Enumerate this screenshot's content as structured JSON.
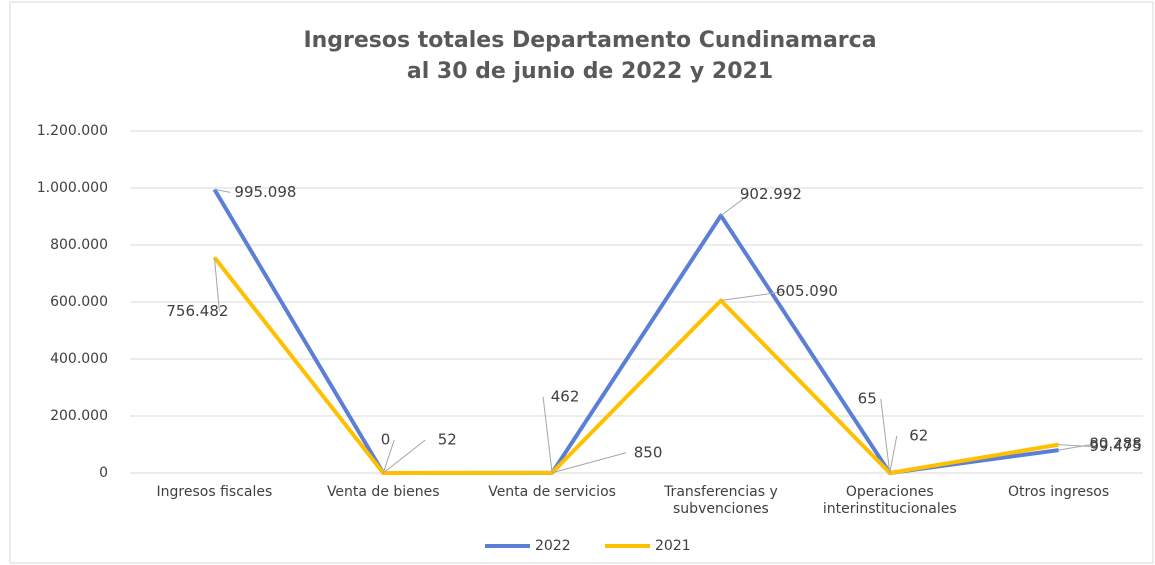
{
  "chart_data": {
    "type": "line",
    "title": [
      "Ingresos totales Departamento Cundinamarca",
      "al 30 de junio de 2022 y 2021"
    ],
    "categories": [
      "Ingresos fiscales",
      "Venta de bienes",
      "Venta de servicios",
      "Transferencias y subvenciones",
      "Operaciones interinstitucionales",
      "Otros ingresos"
    ],
    "series": [
      {
        "name": "2022",
        "color": "#5b7fd6",
        "values": [
          995098,
          0,
          462,
          902992,
          65,
          80288
        ],
        "value_labels": [
          "995.098",
          "0",
          "462",
          "902.992",
          "65",
          "80.288"
        ]
      },
      {
        "name": "2021",
        "color": "#ffc000",
        "values": [
          756482,
          52,
          850,
          605090,
          62,
          99475
        ],
        "value_labels": [
          "756.482",
          "52",
          "850",
          "605.090",
          "62",
          "99.475"
        ]
      }
    ],
    "ylim": [
      0,
      1200000
    ],
    "yticks": [
      0,
      {
        "value": 200000,
        "label": "200.000"
      },
      {
        "value": 400000,
        "label": "400.000"
      },
      {
        "value": 600000,
        "label": "600.000"
      },
      {
        "value": 800000,
        "label": "800.000"
      },
      {
        "value": 1000000,
        "label": "1.000.000"
      },
      {
        "value": 1200000,
        "label": "1.200.000"
      }
    ],
    "grid": true,
    "legend": "bottom"
  }
}
